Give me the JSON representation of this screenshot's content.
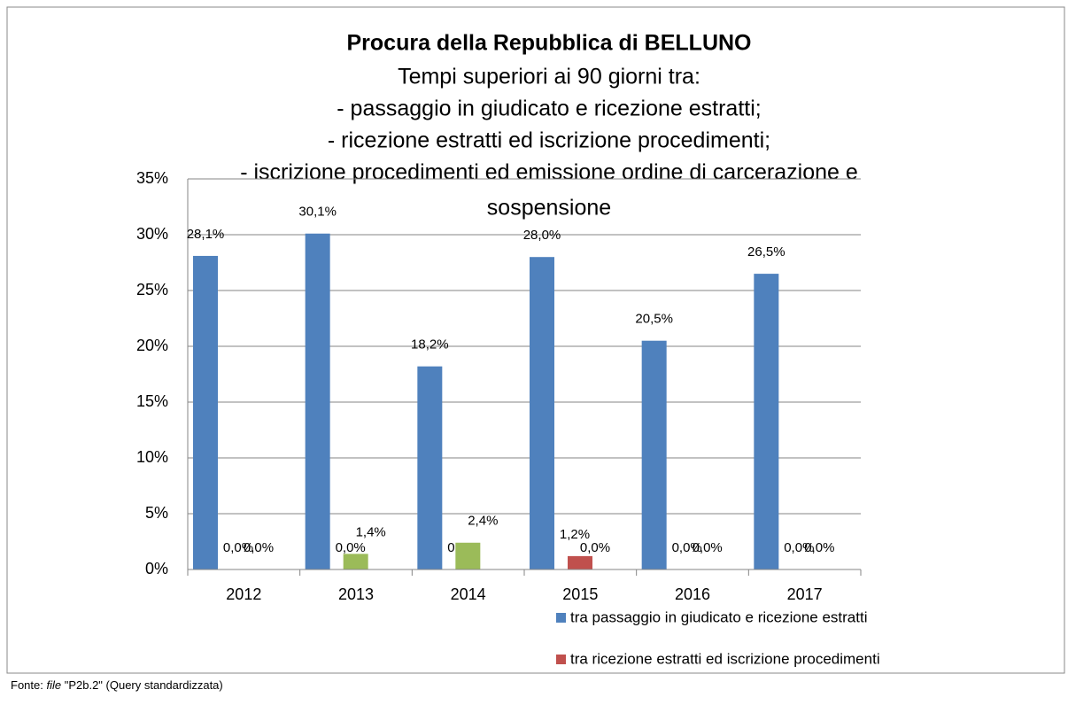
{
  "chart_data": {
    "type": "bar",
    "title": "Procura della Repubblica di BELLUNO",
    "subtitle": [
      "Tempi superiori ai 90 giorni tra:",
      "- passaggio in giudicato e ricezione estratti;",
      "- ricezione estratti ed iscrizione procedimenti;",
      "- iscrizione procedimenti ed emissione ordine di carcerazione e",
      "sospensione"
    ],
    "categories": [
      "2012",
      "2013",
      "2014",
      "2015",
      "2016",
      "2017"
    ],
    "series": [
      {
        "name": "tra passaggio in giudicato e ricezione estratti",
        "color": "#4f81bd",
        "values": [
          28.1,
          30.1,
          18.2,
          28.0,
          20.5,
          26.5
        ],
        "value_labels": [
          "28,1%",
          "30,1%",
          "18,2%",
          "28,0%",
          "20,5%",
          "26,5%"
        ]
      },
      {
        "name": "tra ricezione estratti ed iscrizione procedimenti",
        "color": "#c0504d",
        "values": [
          0,
          0,
          0,
          1.2,
          0,
          0
        ],
        "value_labels": [
          "0,0%",
          "0,0%",
          "0,0%",
          "1,2%",
          "0,0%",
          "0,0%"
        ]
      },
      {
        "color": "#9bbb59",
        "values": [
          0,
          1.4,
          2.4,
          0,
          0,
          0
        ],
        "value_labels": [
          "0,0%",
          "1,4%",
          "2,4%",
          "0,0%",
          "0,0%",
          "0,0%"
        ]
      }
    ],
    "ylim": [
      0,
      35
    ],
    "yticks": [
      {
        "value": 0,
        "label": "0%"
      },
      {
        "value": 5,
        "label": "5%"
      },
      {
        "value": 10,
        "label": "10%"
      },
      {
        "value": 15,
        "label": "15%"
      },
      {
        "value": 20,
        "label": "20%"
      },
      {
        "value": 25,
        "label": "25%"
      },
      {
        "value": 30,
        "label": "30%"
      },
      {
        "value": 35,
        "label": "35%"
      }
    ],
    "grid": true,
    "source": {
      "prefix": "Fonte: ",
      "italic": "file",
      "suffix": " \"P2b.2\" (Query standardizzata)"
    }
  }
}
